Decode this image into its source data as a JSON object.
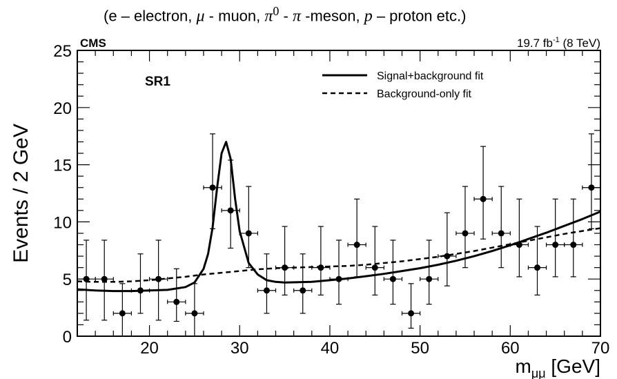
{
  "caption": {
    "prefix": "(e – electron, ",
    "mu_symbol": "μ",
    "mu_text": " - muon, ",
    "pi0_symbol": "π",
    "pi0_sup": "0",
    "pi0_dash": " - ",
    "pi_symbol": "π",
    "pi_text": " -meson, ",
    "p_symbol": "p",
    "p_text": " – proton   etc.)"
  },
  "chart_data": {
    "type": "scatter",
    "experiment_label": "CMS",
    "lumi_label": "19.7 fb",
    "lumi_sup": "-1",
    "lumi_suffix": " (8 TeV)",
    "region_label": "SR1",
    "ylabel": "Events / 2 GeV",
    "xlabel_main": "m",
    "xlabel_sub": "μμ",
    "xlabel_unit": " [GeV]",
    "xlim": [
      12,
      70
    ],
    "ylim": [
      0,
      25
    ],
    "x_ticks": [
      20,
      30,
      40,
      50,
      60,
      70
    ],
    "y_ticks": [
      0,
      5,
      10,
      15,
      20,
      25
    ],
    "grid": false,
    "legend_position": "top-right",
    "legend": [
      {
        "name": "Signal+background fit",
        "style": "solid"
      },
      {
        "name": "Background-only fit",
        "style": "dashed"
      }
    ],
    "data_points": [
      {
        "x": 13,
        "y": 5,
        "err_low": 3.6,
        "err_high": 3.4
      },
      {
        "x": 15,
        "y": 5,
        "err_low": 3.6,
        "err_high": 3.4
      },
      {
        "x": 17,
        "y": 2,
        "err_low": 2.0,
        "err_high": 2.6
      },
      {
        "x": 19,
        "y": 4,
        "err_low": 2.0,
        "err_high": 3.2
      },
      {
        "x": 21,
        "y": 5,
        "err_low": 3.6,
        "err_high": 3.4
      },
      {
        "x": 23,
        "y": 3,
        "err_low": 1.7,
        "err_high": 2.9
      },
      {
        "x": 25,
        "y": 2,
        "err_low": 2.0,
        "err_high": 2.6
      },
      {
        "x": 27,
        "y": 13,
        "err_low": 3.6,
        "err_high": 4.7
      },
      {
        "x": 29,
        "y": 11,
        "err_low": 3.3,
        "err_high": 4.4
      },
      {
        "x": 31,
        "y": 9,
        "err_low": 3.0,
        "err_high": 4.1
      },
      {
        "x": 33,
        "y": 4,
        "err_low": 2.0,
        "err_high": 3.2
      },
      {
        "x": 35,
        "y": 6,
        "err_low": 2.4,
        "err_high": 3.6
      },
      {
        "x": 37,
        "y": 4,
        "err_low": 2.0,
        "err_high": 3.2
      },
      {
        "x": 39,
        "y": 6,
        "err_low": 2.4,
        "err_high": 3.6
      },
      {
        "x": 41,
        "y": 5,
        "err_low": 2.2,
        "err_high": 3.4
      },
      {
        "x": 43,
        "y": 8,
        "err_low": 2.8,
        "err_high": 4.0
      },
      {
        "x": 45,
        "y": 6,
        "err_low": 2.4,
        "err_high": 3.6
      },
      {
        "x": 47,
        "y": 5,
        "err_low": 2.2,
        "err_high": 3.4
      },
      {
        "x": 49,
        "y": 2,
        "err_low": 1.3,
        "err_high": 2.6
      },
      {
        "x": 51,
        "y": 5,
        "err_low": 2.2,
        "err_high": 3.4
      },
      {
        "x": 53,
        "y": 7,
        "err_low": 2.6,
        "err_high": 3.8
      },
      {
        "x": 55,
        "y": 9,
        "err_low": 3.0,
        "err_high": 4.1
      },
      {
        "x": 57,
        "y": 12,
        "err_low": 3.5,
        "err_high": 4.6
      },
      {
        "x": 59,
        "y": 9,
        "err_low": 3.0,
        "err_high": 4.1
      },
      {
        "x": 61,
        "y": 8,
        "err_low": 2.8,
        "err_high": 4.0
      },
      {
        "x": 63,
        "y": 6,
        "err_low": 2.4,
        "err_high": 3.6
      },
      {
        "x": 65,
        "y": 8,
        "err_low": 2.8,
        "err_high": 4.0
      },
      {
        "x": 67,
        "y": 8,
        "err_low": 2.8,
        "err_high": 4.0
      },
      {
        "x": 69,
        "y": 13,
        "err_low": 3.6,
        "err_high": 4.7
      }
    ],
    "x_bin_halfwidth": 1,
    "series": [
      {
        "name": "Signal+background fit",
        "style": "solid",
        "x": [
          12,
          14,
          16,
          18,
          20,
          22,
          24,
          25,
          26,
          26.5,
          27,
          27.5,
          28,
          28.5,
          29,
          29.5,
          30,
          31,
          32,
          33,
          34,
          35,
          38,
          40,
          42,
          44,
          46,
          48,
          50,
          52,
          54,
          56,
          58,
          60,
          62,
          64,
          66,
          68,
          70
        ],
        "y": [
          4.1,
          4.0,
          3.95,
          3.95,
          4.0,
          4.05,
          4.3,
          4.7,
          5.9,
          7.2,
          9.5,
          13.0,
          16.0,
          17.0,
          15.5,
          12.0,
          9.2,
          6.4,
          5.4,
          4.9,
          4.75,
          4.7,
          4.75,
          4.9,
          5.05,
          5.25,
          5.45,
          5.7,
          5.95,
          6.25,
          6.6,
          7.0,
          7.45,
          7.95,
          8.5,
          9.05,
          9.65,
          10.25,
          10.9
        ]
      },
      {
        "name": "Background-only fit",
        "style": "dashed",
        "x": [
          12,
          14,
          16,
          18,
          20,
          22,
          24,
          26,
          28,
          30,
          32,
          34,
          36,
          38,
          40,
          42,
          44,
          46,
          48,
          50,
          52,
          54,
          56,
          58,
          60,
          62,
          64,
          66,
          68,
          70
        ],
        "y": [
          4.8,
          4.75,
          4.75,
          4.8,
          4.9,
          5.05,
          5.2,
          5.4,
          5.55,
          5.7,
          5.85,
          5.95,
          6.0,
          6.05,
          6.1,
          6.15,
          6.25,
          6.4,
          6.55,
          6.75,
          6.95,
          7.2,
          7.45,
          7.75,
          8.05,
          8.35,
          8.65,
          8.95,
          9.2,
          9.45
        ]
      }
    ]
  }
}
